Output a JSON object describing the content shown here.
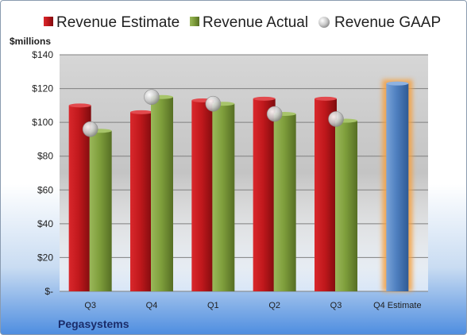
{
  "chart_data": {
    "type": "bar",
    "title": "",
    "ylabel": "$millions",
    "xlabel": "",
    "company": "Pegasystems",
    "categories": [
      "Q3",
      "Q4",
      "Q1",
      "Q2",
      "Q3",
      "Q4 Estimate"
    ],
    "series": [
      {
        "name": "Revenue Estimate",
        "type": "bar",
        "color": "#c0181c",
        "values": [
          110,
          106,
          113,
          114,
          114,
          null
        ]
      },
      {
        "name": "Revenue Actual",
        "type": "bar",
        "color": "#7f9f3c",
        "values": [
          95,
          115,
          111,
          105,
          101,
          null
        ]
      },
      {
        "name": "Revenue GAAP",
        "type": "scatter",
        "color": "#b8b8b8",
        "values": [
          96,
          115,
          111,
          105,
          102,
          null
        ]
      },
      {
        "name": "Q4 Estimate",
        "type": "bar",
        "color": "#4f80c0",
        "highlight": "#f5a040",
        "values": [
          null,
          null,
          null,
          null,
          null,
          123
        ]
      }
    ],
    "ylim": [
      0,
      140
    ],
    "yticks": [
      0,
      20,
      40,
      60,
      80,
      100,
      120,
      140
    ],
    "ytick_labels": [
      "$-",
      "$20",
      "$40",
      "$60",
      "$80",
      "$100",
      "$120",
      "$140"
    ],
    "grid": true,
    "legend": "top"
  }
}
